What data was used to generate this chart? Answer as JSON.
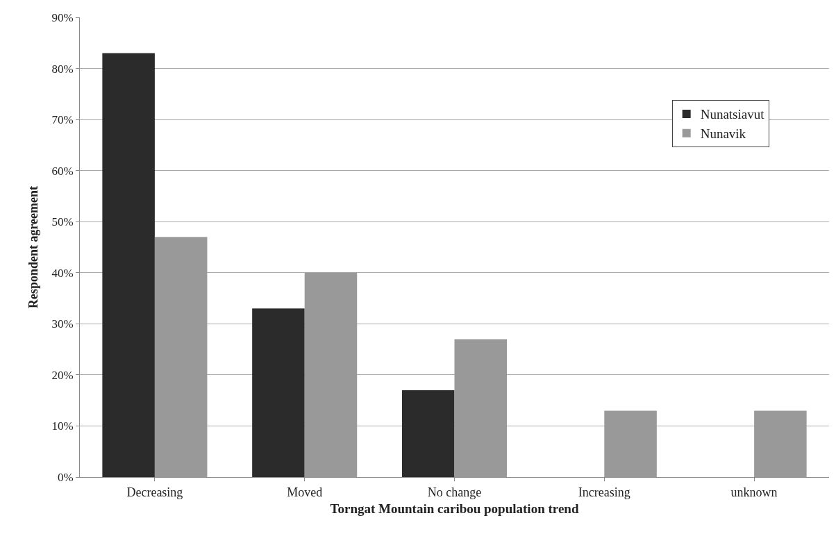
{
  "chart_data": {
    "type": "bar",
    "xlabel": "Torngat Mountain caribou population trend",
    "ylabel": "Respondent agreement",
    "categories": [
      "Decreasing",
      "Moved",
      "No change",
      "Increasing",
      "unknown"
    ],
    "series": [
      {
        "name": "Nunatsiavut",
        "color": "#2b2b2b",
        "values": [
          83,
          33,
          17,
          0,
          0
        ]
      },
      {
        "name": "Nunavik",
        "color": "#999999",
        "values": [
          47,
          40,
          27,
          13,
          13
        ]
      }
    ],
    "ylim": [
      0,
      90
    ],
    "yticks": [
      {
        "value": 0,
        "label": "0%"
      },
      {
        "value": 10,
        "label": "10%"
      },
      {
        "value": 20,
        "label": "20%"
      },
      {
        "value": 30,
        "label": "30%"
      },
      {
        "value": 40,
        "label": "40%"
      },
      {
        "value": 50,
        "label": "50%"
      },
      {
        "value": 60,
        "label": "60%"
      },
      {
        "value": 70,
        "label": "70%"
      },
      {
        "value": 80,
        "label": "80%"
      },
      {
        "value": 90,
        "label": "90%"
      }
    ],
    "grid": "y",
    "legend": "top right"
  }
}
